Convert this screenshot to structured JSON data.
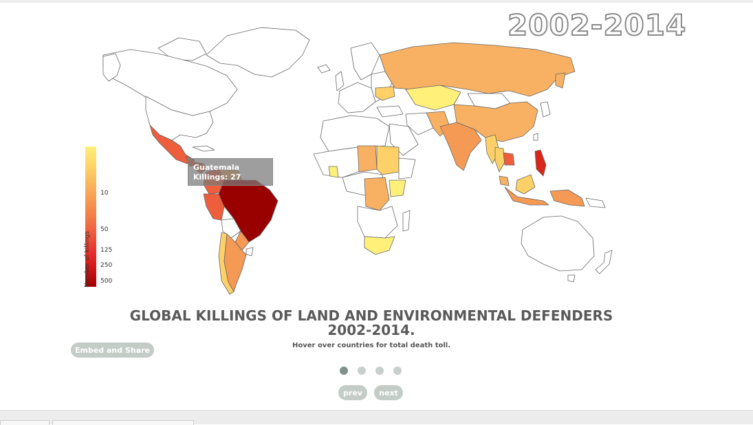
{
  "header": {
    "year_range": "2002-2014"
  },
  "map": {
    "legend": {
      "title": "Number of killings",
      "ticks": [
        "10",
        "50",
        "125",
        "250",
        "500"
      ]
    },
    "tooltip": {
      "country": "Guatemala",
      "value_text": "Killings: 27"
    },
    "colors": {
      "very_low": "#fff07a",
      "low": "#fdd167",
      "mid_low": "#f8b162",
      "mid": "#f49a55",
      "high": "#ee5e3c",
      "very_high": "#d9261c",
      "max": "#990000",
      "none": "#ffffff"
    }
  },
  "caption": {
    "title_line1": "GLOBAL KILLINGS OF LAND AND ENVIRONMENTAL DEFENDERS",
    "title_line2": "2002-2014.",
    "subtitle": "Hover over countries for total death toll."
  },
  "controls": {
    "embed_label": "Embed and Share",
    "prev_label": "prev",
    "next_label": "next",
    "slides": 4,
    "active_slide": 1
  }
}
